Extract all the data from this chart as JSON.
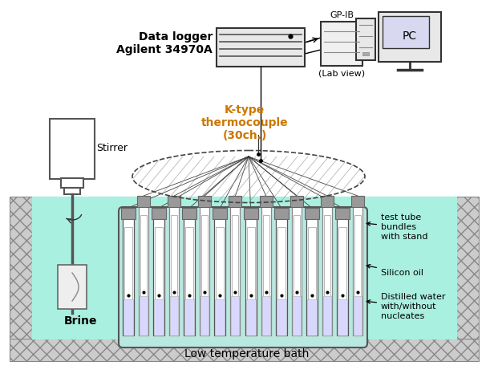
{
  "bg_color": "#ffffff",
  "brine_color": "#aaf0e0",
  "tube_water_color": "#d8d8ff",
  "text_color": "#000000",
  "orange_text_color": "#cc7700",
  "label_fontsize": 9,
  "small_fontsize": 8,
  "labels": {
    "data_logger": "Data logger\nAgilent 34970A",
    "gp_ib": "GP-IB",
    "pc": "PC",
    "lab_view": "(Lab view)",
    "k_type": "K-type\nthermocouple\n(30ch.)",
    "stirrer": "Stirrer",
    "brine": "Brine",
    "test_tube": "test tube\nbundles\nwith stand",
    "silicon_oil": "Silicon oil",
    "distilled_water": "Distilled water\nwith/without\nnucleates",
    "low_temp": "Low temperature bath"
  }
}
